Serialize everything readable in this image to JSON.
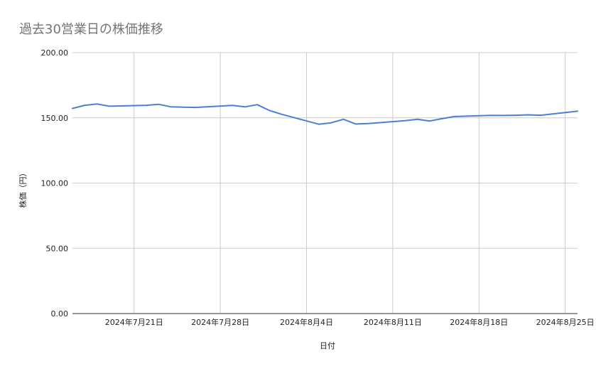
{
  "chart_data": {
    "type": "line",
    "title": "過去30営業日の株価推移",
    "xlabel": "日付",
    "ylabel": "株価（円）",
    "ylim": [
      0,
      200
    ],
    "y_ticks": [
      "0.00",
      "50.00",
      "100.00",
      "150.00",
      "200.00"
    ],
    "x_ticks": [
      {
        "date": "2024-07-21",
        "label": "2024年7月21日"
      },
      {
        "date": "2024-07-28",
        "label": "2024年7月28日"
      },
      {
        "date": "2024-08-04",
        "label": "2024年8月4日"
      },
      {
        "date": "2024-08-11",
        "label": "2024年8月11日"
      },
      {
        "date": "2024-08-18",
        "label": "2024年8月18日"
      },
      {
        "date": "2024-08-25",
        "label": "2024年8月25日"
      }
    ],
    "xlim": [
      "2024-07-16",
      "2024-08-26"
    ],
    "grid": true,
    "series": [
      {
        "color": "#4a7fd6",
        "points": [
          {
            "x": "2024-07-16",
            "y": 157.2
          },
          {
            "x": "2024-07-17",
            "y": 159.6
          },
          {
            "x": "2024-07-18",
            "y": 160.6
          },
          {
            "x": "2024-07-19",
            "y": 158.9
          },
          {
            "x": "2024-07-22",
            "y": 159.6
          },
          {
            "x": "2024-07-23",
            "y": 160.4
          },
          {
            "x": "2024-07-24",
            "y": 158.4
          },
          {
            "x": "2024-07-25",
            "y": 158.2
          },
          {
            "x": "2024-07-26",
            "y": 158.0
          },
          {
            "x": "2024-07-29",
            "y": 159.5
          },
          {
            "x": "2024-07-30",
            "y": 158.4
          },
          {
            "x": "2024-07-31",
            "y": 160.1
          },
          {
            "x": "2024-08-01",
            "y": 155.6
          },
          {
            "x": "2024-08-02",
            "y": 152.7
          },
          {
            "x": "2024-08-05",
            "y": 145.1
          },
          {
            "x": "2024-08-06",
            "y": 146.2
          },
          {
            "x": "2024-08-07",
            "y": 148.9
          },
          {
            "x": "2024-08-08",
            "y": 145.3
          },
          {
            "x": "2024-08-09",
            "y": 145.6
          },
          {
            "x": "2024-08-12",
            "y": 147.8
          },
          {
            "x": "2024-08-13",
            "y": 148.9
          },
          {
            "x": "2024-08-14",
            "y": 147.6
          },
          {
            "x": "2024-08-15",
            "y": 149.4
          },
          {
            "x": "2024-08-16",
            "y": 151.0
          },
          {
            "x": "2024-08-19",
            "y": 151.9
          },
          {
            "x": "2024-08-20",
            "y": 151.8
          },
          {
            "x": "2024-08-21",
            "y": 152.0
          },
          {
            "x": "2024-08-22",
            "y": 152.3
          },
          {
            "x": "2024-08-23",
            "y": 152.0
          },
          {
            "x": "2024-08-26",
            "y": 155.1
          }
        ]
      }
    ]
  }
}
